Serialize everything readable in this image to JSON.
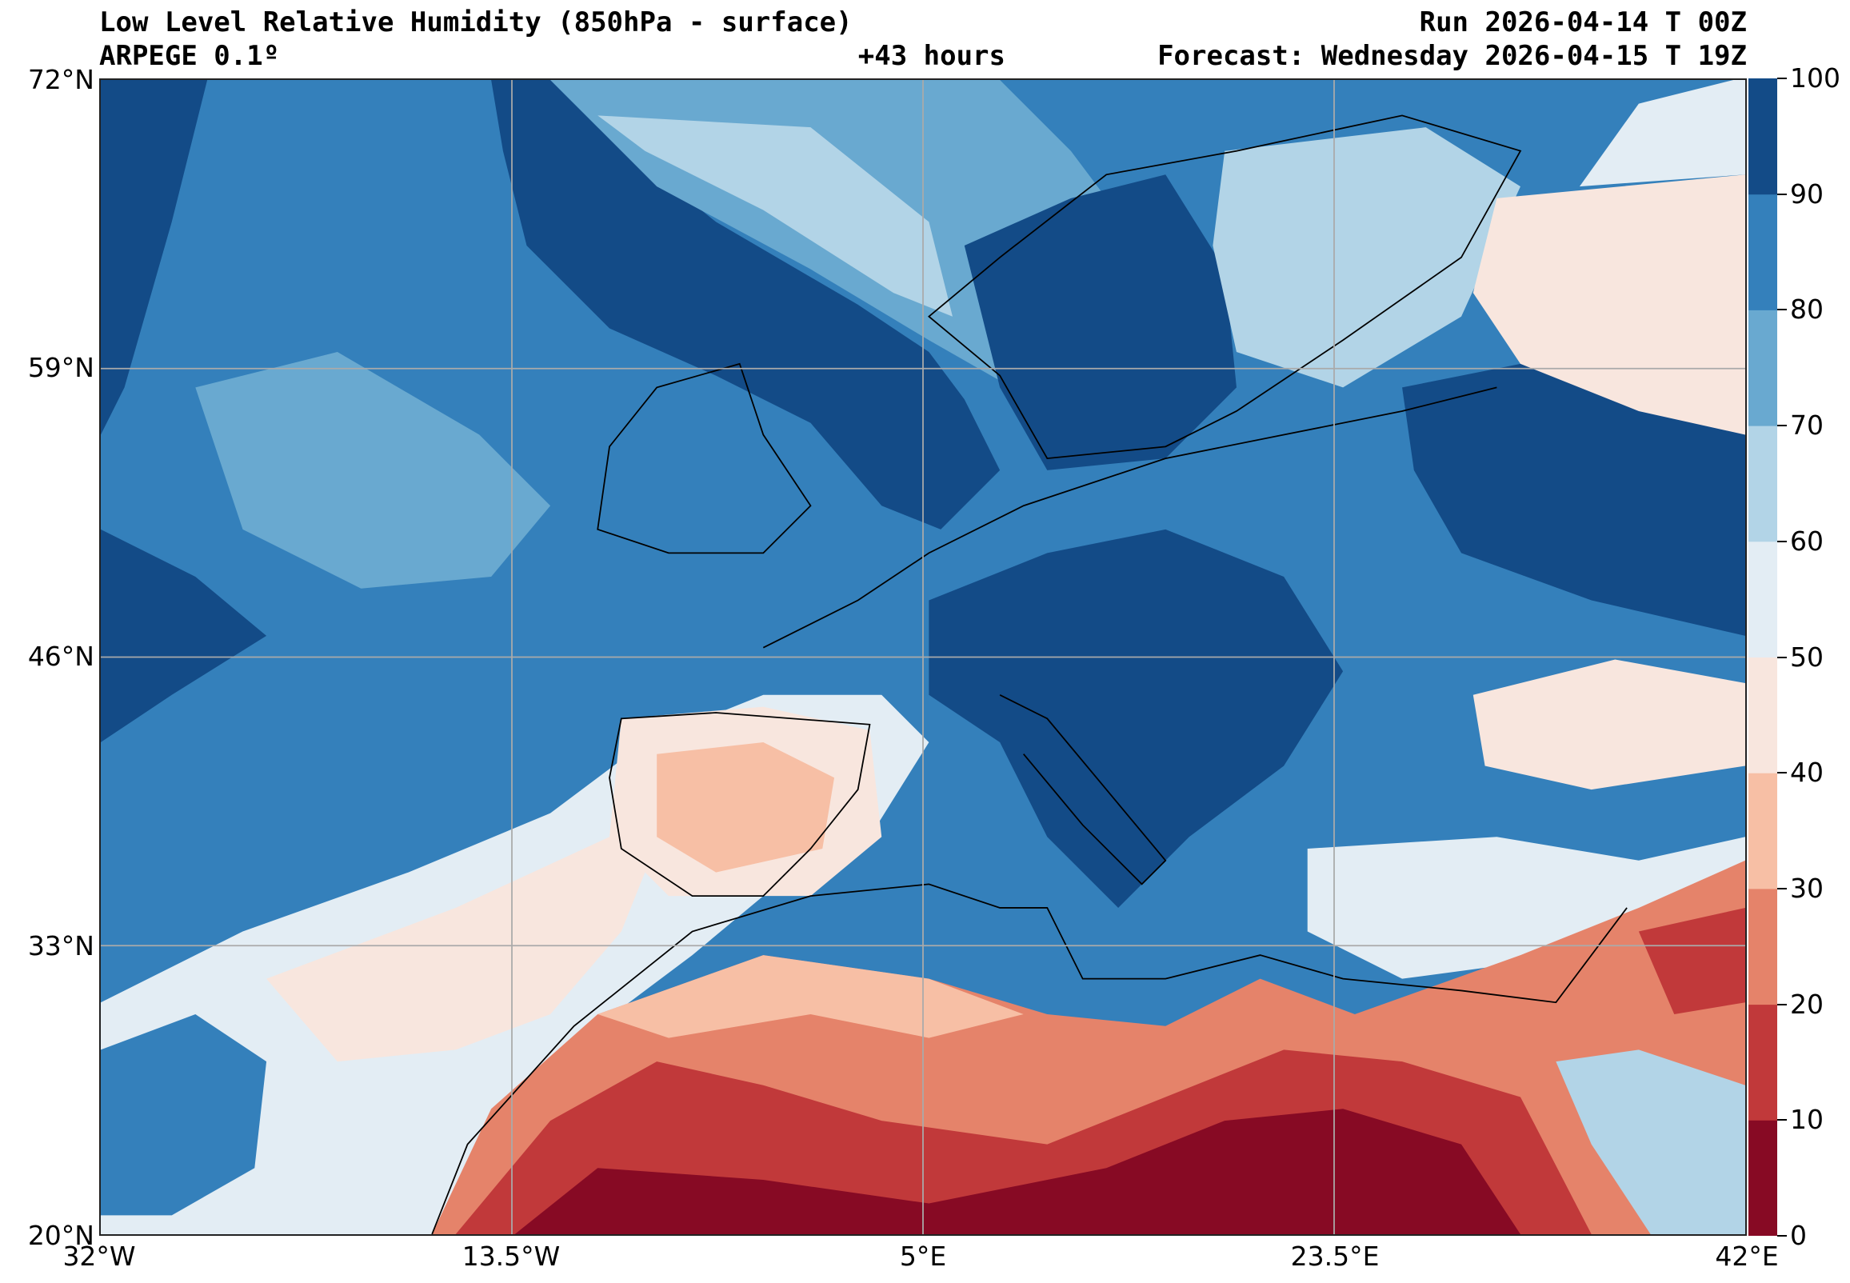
{
  "header": {
    "title": "Low Level Relative Humidity (850hPa - surface)",
    "run": "Run 2026-04-14 T 00Z",
    "model": "ARPEGE 0.1º",
    "lead_time": "+43 hours",
    "forecast": "Forecast: Wednesday 2026-04-15 T 19Z"
  },
  "axes": {
    "lat_labels": [
      "72°N",
      "59°N",
      "46°N",
      "33°N",
      "20°N"
    ],
    "lon_labels": [
      "32°W",
      "13.5°W",
      "5°E",
      "23.5°E",
      "42°E"
    ]
  },
  "colorbar": {
    "levels": [
      "0",
      "10",
      "20",
      "30",
      "40",
      "50",
      "60",
      "70",
      "80",
      "90",
      "100"
    ],
    "colors": [
      "#870a24",
      "#c1393a",
      "#e5836a",
      "#f7bfa5",
      "#f8e6de",
      "#e3edf4",
      "#b2d4e7",
      "#69a9d0",
      "#3480bb",
      "#134b87"
    ]
  }
}
